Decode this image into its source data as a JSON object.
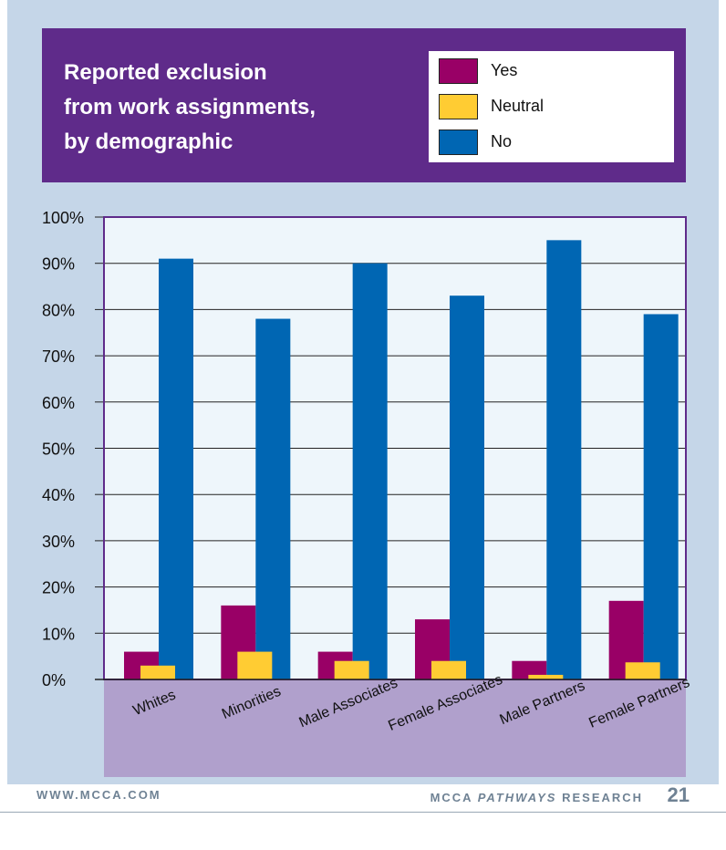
{
  "header": {
    "title_lines": [
      "Reported exclusion",
      "from work assignments,",
      "by demographic"
    ]
  },
  "legend": [
    {
      "label": "Yes",
      "color": "#990066"
    },
    {
      "label": "Neutral",
      "color": "#ffcc33"
    },
    {
      "label": "No",
      "color": "#0066b3"
    }
  ],
  "footer": {
    "website": "WWW.MCCA.COM",
    "org_prefix": "MCCA ",
    "org_italic": "PATHWAYS",
    "org_suffix": " RESEARCH",
    "page_number": "21"
  },
  "chart_data": {
    "type": "bar",
    "title": "Reported exclusion from work assignments, by demographic",
    "xlabel": "",
    "ylabel": "",
    "ylim": [
      0,
      100
    ],
    "yticks": [
      "0%",
      "10%",
      "20%",
      "30%",
      "40%",
      "50%",
      "60%",
      "70%",
      "80%",
      "90%",
      "100%"
    ],
    "categories": [
      "Whites",
      "Minorities",
      "Male Associates",
      "Female Associates",
      "Male Partners",
      "Female Partners"
    ],
    "series": [
      {
        "name": "Yes",
        "color": "#990066",
        "values": [
          6,
          16,
          6,
          13,
          4,
          17
        ]
      },
      {
        "name": "Neutral",
        "color": "#ffcc33",
        "values": [
          3,
          6,
          4,
          4,
          1,
          3.7
        ]
      },
      {
        "name": "No",
        "color": "#0066b3",
        "values": [
          91,
          78,
          90,
          83,
          95,
          79
        ]
      }
    ],
    "grid": true,
    "legend_position": "top-right"
  }
}
